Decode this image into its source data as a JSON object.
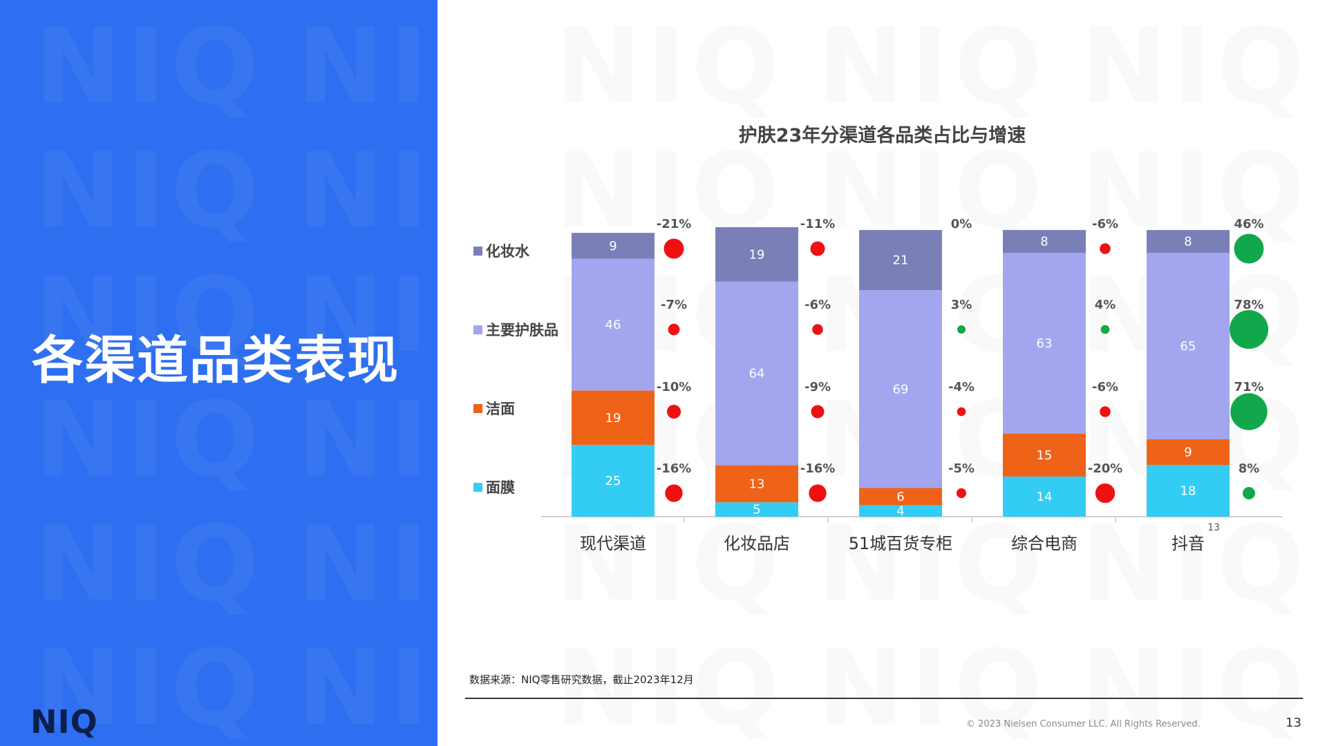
{
  "slide": {
    "title": "各渠道品类表现",
    "logo": "NIQ",
    "watermark": "NIQ",
    "source_note": "数据来源：NIQ零售研究数据，截止2023年12月",
    "copyright": "© 2023 Nielsen Consumer LLC. All Rights Reserved.",
    "page_number": "13"
  },
  "colors": {
    "left_panel": "#2d6ff0",
    "positive_growth": "#10a84a",
    "negative_growth": "#ee1111"
  },
  "chart_data": {
    "type": "bar",
    "stacked": true,
    "percent_stacked": true,
    "title": "护肤23年分渠道各品类占比与增速",
    "categories": [
      "现代渠道",
      "化妆品店",
      "51城百货专柜",
      "综合电商",
      "抖音"
    ],
    "annotation": "13",
    "legend_position": "left",
    "series": [
      {
        "name": "面膜",
        "color": "#33ccf5",
        "values": [
          25,
          5,
          4,
          14,
          18
        ],
        "growth": [
          -16,
          -16,
          -5,
          -20,
          8
        ]
      },
      {
        "name": "洁面",
        "color": "#ef6318",
        "values": [
          19,
          13,
          6,
          15,
          9
        ],
        "growth": [
          -10,
          -9,
          -4,
          -6,
          71
        ]
      },
      {
        "name": "主要护肤品",
        "color": "#a3a6ef",
        "values": [
          46,
          64,
          69,
          63,
          65
        ],
        "growth": [
          -7,
          -6,
          3,
          4,
          78
        ]
      },
      {
        "name": "化妆水",
        "color": "#7b7fb8",
        "values": [
          9,
          19,
          21,
          8,
          8
        ],
        "growth": [
          -21,
          -11,
          0,
          -6,
          46
        ]
      }
    ]
  }
}
